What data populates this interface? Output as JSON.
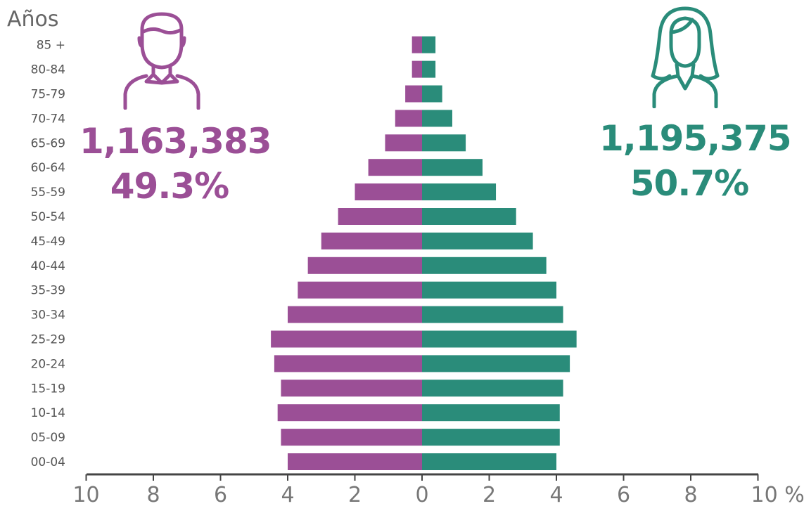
{
  "chart_data": {
    "type": "bar",
    "orientation": "horizontal",
    "ylabel": "Años",
    "x_unit": "%",
    "xlim": [
      -10,
      10
    ],
    "x_ticks": [
      10,
      8,
      6,
      4,
      2,
      0,
      2,
      4,
      6,
      8,
      10
    ],
    "x_tick_last_suffix": " %",
    "categories": [
      "00-04",
      "05-09",
      "10-14",
      "15-19",
      "20-24",
      "25-29",
      "30-34",
      "35-39",
      "40-44",
      "45-49",
      "50-54",
      "55-59",
      "60-64",
      "65-69",
      "70-74",
      "75-79",
      "80-84",
      "85 +"
    ],
    "series": [
      {
        "values": [
          4.0,
          4.2,
          4.3,
          4.2,
          4.4,
          4.5,
          4.0,
          3.7,
          3.4,
          3.0,
          2.5,
          2.0,
          1.6,
          1.1,
          0.8,
          0.5,
          0.3,
          0.3
        ],
        "color": "#9b4f96",
        "side": "left"
      },
      {
        "values": [
          4.0,
          4.1,
          4.1,
          4.2,
          4.4,
          4.6,
          4.2,
          4.0,
          3.7,
          3.3,
          2.8,
          2.2,
          1.8,
          1.3,
          0.9,
          0.6,
          0.4,
          0.4
        ],
        "color": "#2a8c7a",
        "side": "right"
      }
    ],
    "grid": false,
    "legend": "none"
  },
  "male": {
    "total": "1,163,383",
    "percent": "49.3%",
    "icon": "man-icon",
    "color": "#9b4f96"
  },
  "female": {
    "total": "1,195,375",
    "percent": "50.7%",
    "icon": "woman-icon",
    "color": "#2a8c7a"
  }
}
